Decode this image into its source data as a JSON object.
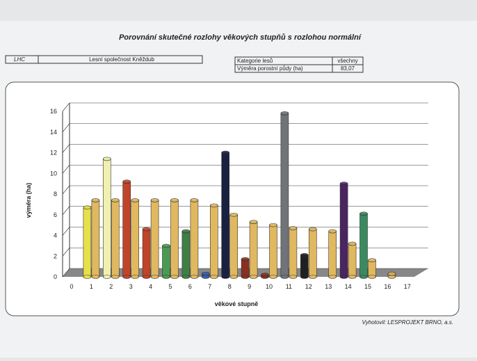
{
  "header": {
    "title": "Porovnání skutečné rozlohy věkových stupňů s rozlohou normální",
    "lhc_label": "LHC",
    "lhc_value": "Lesní společnost Kněždub",
    "category_label": "Kategorie lesů",
    "category_value": "všechny",
    "area_label": "Výměra porostní půdy (ha)",
    "area_value": "83,07"
  },
  "chart_data": {
    "type": "bar3d",
    "ylabel": "výměra (ha)",
    "xlabel": "věkové stupně",
    "categories": [
      "0",
      "1",
      "2",
      "3",
      "4",
      "5",
      "6",
      "7",
      "8",
      "9",
      "10",
      "11",
      "12",
      "13",
      "14",
      "15",
      "16",
      "17"
    ],
    "series": [
      {
        "colors": [
          null,
          "#e8e04a",
          "#f0f0b0",
          "#c0442a",
          "#c0442a",
          "#4a9a52",
          "#3f7f45",
          "#3a5fb0",
          "#1a2040",
          "#8a3020",
          "#8a3020",
          "#707478",
          "#202020",
          null,
          "#4a2560",
          "#3a8a60",
          null,
          null
        ],
        "values": [
          null,
          6.7,
          11.4,
          9.2,
          4.6,
          3.0,
          4.4,
          0.3,
          12.0,
          1.7,
          0.2,
          15.8,
          2.1,
          null,
          9.0,
          6.1,
          null,
          null
        ]
      },
      {
        "color": "#e0b860",
        "values": [
          null,
          7.4,
          7.4,
          7.4,
          7.4,
          7.4,
          7.4,
          6.9,
          6.0,
          5.3,
          5.0,
          4.7,
          4.6,
          4.4,
          3.2,
          1.6,
          0.3,
          null
        ]
      }
    ],
    "ylim": [
      0,
      16
    ],
    "yticks": [
      0,
      2,
      4,
      6,
      8,
      10,
      12,
      14,
      16
    ],
    "grid": true
  },
  "footer": "Vyhotovil: LESPROJEKT BRNO, a.s."
}
